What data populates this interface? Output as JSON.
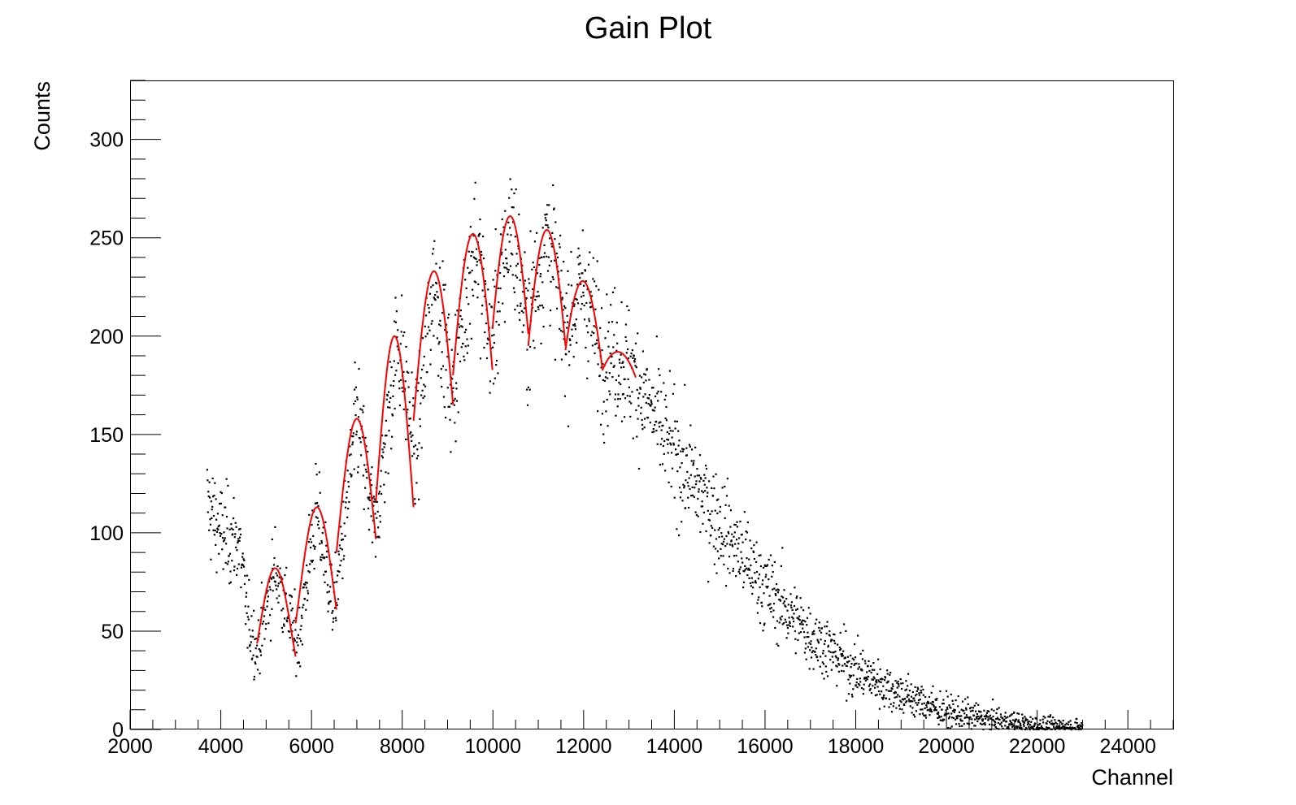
{
  "chart_data": {
    "type": "scatter",
    "title": "Gain Plot",
    "xlabel": "Channel",
    "ylabel": "Counts",
    "xlim": [
      2000,
      25000
    ],
    "ylim": [
      0,
      330
    ],
    "x_ticks": [
      2000,
      4000,
      6000,
      8000,
      10000,
      12000,
      14000,
      16000,
      18000,
      20000,
      22000,
      24000
    ],
    "y_ticks": [
      0,
      50,
      100,
      150,
      200,
      250,
      300
    ],
    "grid": false,
    "legend": "none",
    "marker_color": "#000000",
    "fit_color": "#ff0000",
    "data_range": [
      3700,
      23000
    ],
    "envelope": [
      [
        3700,
        115
      ],
      [
        4000,
        100
      ],
      [
        4400,
        95
      ],
      [
        4600,
        55
      ],
      [
        4800,
        40
      ],
      [
        5200,
        82
      ],
      [
        5700,
        42
      ],
      [
        6100,
        112
      ],
      [
        6500,
        60
      ],
      [
        7000,
        160
      ],
      [
        7400,
        100
      ],
      [
        7900,
        200
      ],
      [
        8300,
        140
      ],
      [
        8700,
        232
      ],
      [
        9100,
        170
      ],
      [
        9600,
        250
      ],
      [
        9950,
        195
      ],
      [
        10400,
        258
      ],
      [
        10750,
        205
      ],
      [
        11200,
        252
      ],
      [
        11600,
        205
      ],
      [
        12000,
        226
      ],
      [
        12400,
        190
      ],
      [
        12700,
        192
      ],
      [
        13100,
        180
      ],
      [
        14000,
        140
      ],
      [
        15000,
        105
      ],
      [
        16000,
        72
      ],
      [
        17000,
        48
      ],
      [
        18000,
        30
      ],
      [
        19000,
        18
      ],
      [
        20000,
        9
      ],
      [
        21000,
        5
      ],
      [
        22000,
        2
      ],
      [
        23000,
        1
      ]
    ],
    "fit_peaks": [
      {
        "mu": 5200,
        "amp": 82,
        "from": 4800,
        "to": 5650,
        "depth": 45
      },
      {
        "mu": 6120,
        "amp": 113,
        "from": 5650,
        "to": 6550,
        "depth": 59
      },
      {
        "mu": 7000,
        "amp": 158,
        "from": 6550,
        "to": 7420,
        "depth": 68
      },
      {
        "mu": 7830,
        "amp": 200,
        "from": 7420,
        "to": 8250,
        "depth": 87
      },
      {
        "mu": 8700,
        "amp": 233,
        "from": 8250,
        "to": 9120,
        "depth": 76
      },
      {
        "mu": 9560,
        "amp": 252,
        "from": 9120,
        "to": 9990,
        "depth": 72
      },
      {
        "mu": 10380,
        "amp": 261,
        "from": 9990,
        "to": 10780,
        "depth": 60
      },
      {
        "mu": 11190,
        "amp": 254,
        "from": 10780,
        "to": 11600,
        "depth": 59
      },
      {
        "mu": 11980,
        "amp": 228,
        "from": 11600,
        "to": 12410,
        "depth": 44
      },
      {
        "mu": 12750,
        "amp": 192,
        "from": 12410,
        "to": 13150,
        "depth": 13
      }
    ]
  }
}
